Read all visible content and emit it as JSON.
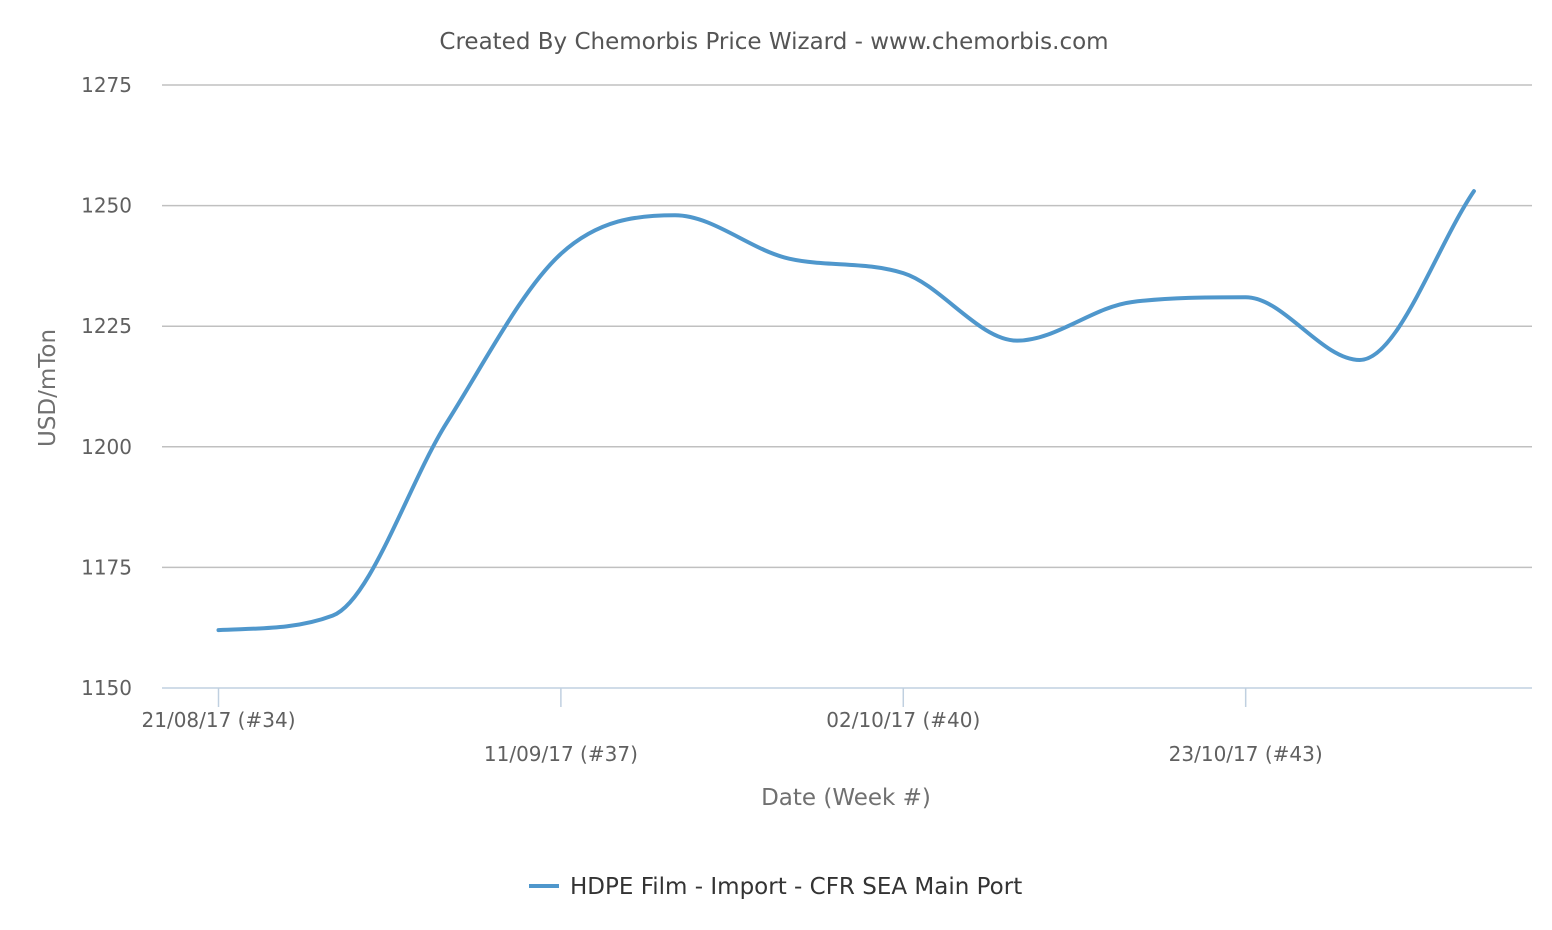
{
  "chart_data": {
    "type": "line",
    "title": "Created By Chemorbis Price Wizard - www.chemorbis.com",
    "xlabel": "Date (Week #)",
    "ylabel": "USD/mTon",
    "ylim": [
      1150,
      1275
    ],
    "yticks": [
      1150,
      1175,
      1200,
      1225,
      1250,
      1275
    ],
    "xtick_labels": [
      {
        "week": 34,
        "label": "21/08/17 (#34)"
      },
      {
        "week": 37,
        "label": "11/09/17 (#37)"
      },
      {
        "week": 40,
        "label": "02/10/17 (#40)"
      },
      {
        "week": 43,
        "label": "23/10/17 (#43)"
      }
    ],
    "grid": true,
    "legend_position": "bottom-center",
    "series": [
      {
        "name": "HDPE Film - Import - CFR SEA Main Port",
        "color": "#4f97cc",
        "x": [
          34,
          35,
          36,
          37,
          38,
          39,
          40,
          41,
          42,
          43,
          44,
          45
        ],
        "y": [
          1162,
          1165,
          1205,
          1240,
          1248,
          1239,
          1236,
          1222,
          1230,
          1231,
          1218,
          1253
        ]
      }
    ]
  }
}
